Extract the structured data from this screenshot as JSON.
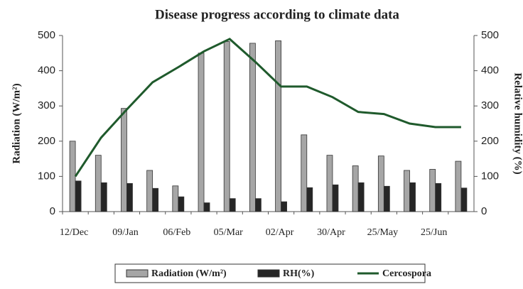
{
  "chart_data": {
    "type": "bar",
    "title": "Disease progress according to climate data",
    "y_label": "Radiation (W/m²)",
    "y2_label": "Relative humidity (%)",
    "categories": [
      "12/Dec",
      null,
      "09/Jan",
      null,
      "06/Feb",
      null,
      "05/Mar",
      null,
      "02/Apr",
      null,
      "30/Apr",
      null,
      "25/May",
      null,
      "25/Jun",
      null
    ],
    "series": [
      {
        "name": "Radiation (W/m²)",
        "color": "#a6a6a6",
        "type": "bar",
        "values": [
          200,
          160,
          293,
          117,
          73,
          450,
          483,
          478,
          485,
          218,
          160,
          130,
          158,
          117,
          120,
          143
        ]
      },
      {
        "name": "RH(%)",
        "color": "#262626",
        "type": "bar",
        "values": [
          87,
          82,
          80,
          66,
          42,
          25,
          37,
          37,
          28,
          68,
          76,
          82,
          72,
          82,
          80,
          67
        ]
      },
      {
        "name": "Cercospora",
        "color": "#1f5a2c",
        "type": "line",
        "axis": "y2",
        "values": [
          100,
          210,
          290,
          367,
          410,
          455,
          490,
          425,
          355,
          355,
          325,
          283,
          277,
          250,
          240,
          240
        ]
      }
    ],
    "ylim": [
      0,
      500
    ],
    "yticks": [
      0,
      100,
      200,
      300,
      400,
      500
    ],
    "y2lim": [
      0,
      500
    ],
    "y2ticks": [
      0,
      100,
      200,
      300,
      400,
      500
    ],
    "legend": "bottom"
  }
}
